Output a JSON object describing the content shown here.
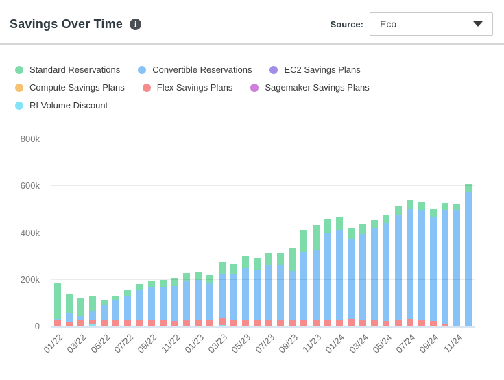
{
  "header": {
    "title": "Savings Over Time",
    "info_glyph": "i",
    "source_label": "Source:",
    "source_value": "Eco"
  },
  "colors": {
    "standard_reservations": "#7edcab",
    "convertible_reservations": "#87c3f7",
    "ec2_savings_plans": "#a48de8",
    "compute_savings_plans": "#f6c173",
    "flex_savings_plans": "#f58b8b",
    "sagemaker_savings_plans": "#cd7fdb",
    "ri_volume_discount": "#85e3f8"
  },
  "legend": {
    "items": [
      {
        "label": "Standard Reservations",
        "color": "#7edcab"
      },
      {
        "label": "Convertible Reservations",
        "color": "#87c3f7"
      },
      {
        "label": "EC2 Savings Plans",
        "color": "#a48de8"
      },
      {
        "label": "Compute Savings Plans",
        "color": "#f6c173"
      },
      {
        "label": "Flex Savings Plans",
        "color": "#f58b8b"
      },
      {
        "label": "Sagemaker Savings Plans",
        "color": "#cd7fdb"
      },
      {
        "label": "RI Volume Discount",
        "color": "#85e3f8"
      }
    ]
  },
  "chart_data": {
    "type": "bar",
    "stacked": true,
    "title": "Savings Over Time",
    "xlabel": "",
    "ylabel": "",
    "ylim": [
      0,
      800000
    ],
    "grid": true,
    "legend_position": "top",
    "y_ticks": [
      {
        "label": "0",
        "value": 0
      },
      {
        "label": "200k",
        "value": 200000
      },
      {
        "label": "400k",
        "value": 400000
      },
      {
        "label": "600k",
        "value": 600000
      },
      {
        "label": "800k",
        "value": 800000
      }
    ],
    "x_tick_every": 2,
    "x": [
      "01/22",
      "02/22",
      "03/22",
      "04/22",
      "05/22",
      "06/22",
      "07/22",
      "08/22",
      "09/22",
      "10/22",
      "11/22",
      "12/22",
      "01/23",
      "02/23",
      "03/23",
      "04/23",
      "05/23",
      "06/23",
      "07/23",
      "08/23",
      "09/23",
      "10/23",
      "11/23",
      "12/23",
      "01/24",
      "02/24",
      "03/24",
      "04/24",
      "05/24",
      "06/24",
      "07/24",
      "08/24",
      "09/24",
      "10/24",
      "11/24",
      "12/24"
    ],
    "series": [
      {
        "name": "RI Volume Discount",
        "color": "#85e3f8",
        "values": [
          0,
          0,
          0,
          8000,
          0,
          0,
          0,
          0,
          0,
          0,
          0,
          0,
          0,
          0,
          5000,
          0,
          0,
          0,
          0,
          0,
          0,
          0,
          0,
          0,
          0,
          0,
          0,
          0,
          0,
          0,
          0,
          0,
          0,
          0,
          0,
          0
        ]
      },
      {
        "name": "Flex Savings Plans",
        "color": "#f58b8b",
        "values": [
          25000,
          20000,
          27000,
          20000,
          30000,
          30000,
          28000,
          28000,
          27000,
          27000,
          24000,
          26000,
          28000,
          28000,
          30000,
          27000,
          28000,
          27000,
          25000,
          25000,
          27000,
          26000,
          26000,
          27000,
          30000,
          32000,
          28000,
          26000,
          23000,
          25000,
          31000,
          28000,
          23000,
          8000,
          0,
          0
        ]
      },
      {
        "name": "Convertible Reservations",
        "color": "#87c3f7",
        "values": [
          8000,
          35000,
          20000,
          36000,
          60000,
          80000,
          101000,
          126000,
          144000,
          142000,
          150000,
          170000,
          170000,
          156000,
          192000,
          196000,
          224000,
          217000,
          237000,
          240000,
          209000,
          294000,
          298000,
          375000,
          382000,
          344000,
          369000,
          394000,
          421000,
          450000,
          469000,
          469000,
          445000,
          489000,
          498000,
          575000
        ]
      },
      {
        "name": "Standard Reservations",
        "color": "#7edcab",
        "values": [
          155000,
          85000,
          75000,
          64000,
          25000,
          22000,
          25000,
          27000,
          25000,
          30000,
          34000,
          34000,
          36000,
          36000,
          48000,
          45000,
          50000,
          49000,
          52000,
          48000,
          100000,
          90000,
          110000,
          58000,
          56000,
          45000,
          44000,
          34000,
          34000,
          37000,
          41000,
          34000,
          36000,
          32000,
          27000,
          36000
        ]
      },
      {
        "name": "EC2 Savings Plans",
        "color": "#a48de8",
        "values": [
          0,
          0,
          0,
          0,
          0,
          0,
          0,
          0,
          0,
          0,
          0,
          0,
          0,
          0,
          0,
          0,
          0,
          0,
          0,
          0,
          0,
          0,
          0,
          0,
          0,
          0,
          0,
          0,
          0,
          0,
          0,
          0,
          0,
          0,
          0,
          0
        ]
      },
      {
        "name": "Compute Savings Plans",
        "color": "#f6c173",
        "values": [
          0,
          0,
          0,
          0,
          0,
          0,
          0,
          0,
          0,
          0,
          0,
          0,
          0,
          0,
          0,
          0,
          0,
          0,
          0,
          0,
          0,
          0,
          0,
          0,
          0,
          0,
          0,
          0,
          0,
          0,
          0,
          0,
          0,
          0,
          0,
          0
        ]
      },
      {
        "name": "Sagemaker Savings Plans",
        "color": "#cd7fdb",
        "values": [
          0,
          0,
          0,
          0,
          0,
          0,
          0,
          0,
          0,
          0,
          0,
          0,
          0,
          0,
          0,
          0,
          0,
          0,
          0,
          0,
          0,
          0,
          0,
          0,
          0,
          0,
          0,
          0,
          0,
          0,
          0,
          0,
          0,
          0,
          0,
          0
        ]
      }
    ]
  }
}
